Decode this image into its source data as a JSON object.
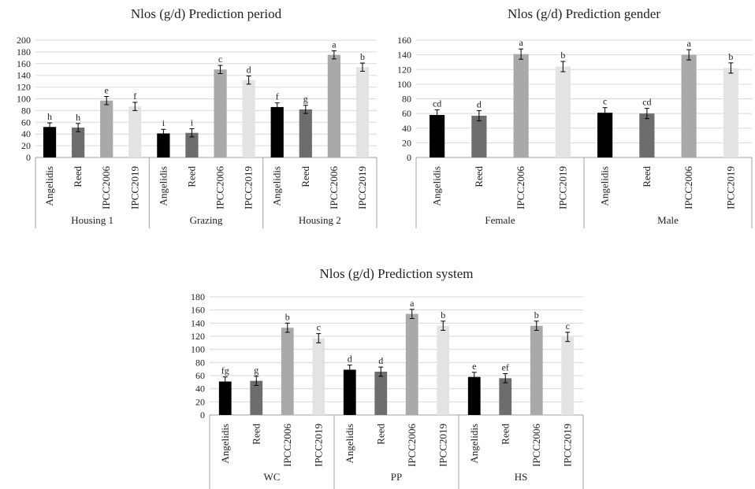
{
  "colors": {
    "Angelidis": "#000000",
    "Reed": "#6d6d6d",
    "IPCC2006": "#a9a9a9",
    "IPCC2019": "#e3e3e3",
    "grid": "#d9d9d9",
    "axis": "#a0a0a0"
  },
  "chart_data": [
    {
      "id": "period",
      "type": "bar",
      "title": "Nlos (g/d) Prediction period",
      "xlabel": "",
      "ylabel": "",
      "ylim": [
        0,
        200
      ],
      "yticks": [
        0,
        20,
        40,
        60,
        80,
        100,
        120,
        140,
        160,
        180,
        200
      ],
      "grid": true,
      "methods": [
        "Angelidis",
        "Reed",
        "IPCC2006",
        "IPCC2019"
      ],
      "groups": [
        {
          "name": "Housing 1",
          "bars": [
            {
              "method": "Angelidis",
              "value": 52,
              "error": 7,
              "letter": "h"
            },
            {
              "method": "Reed",
              "value": 51,
              "error": 7,
              "letter": "h"
            },
            {
              "method": "IPCC2006",
              "value": 97,
              "error": 7,
              "letter": "e"
            },
            {
              "method": "IPCC2019",
              "value": 87,
              "error": 7,
              "letter": "f"
            }
          ]
        },
        {
          "name": "Grazing",
          "bars": [
            {
              "method": "Angelidis",
              "value": 41,
              "error": 7,
              "letter": "i"
            },
            {
              "method": "Reed",
              "value": 42,
              "error": 7,
              "letter": "i"
            },
            {
              "method": "IPCC2006",
              "value": 150,
              "error": 7,
              "letter": "c"
            },
            {
              "method": "IPCC2019",
              "value": 132,
              "error": 7,
              "letter": "d"
            }
          ]
        },
        {
          "name": "Housing 2",
          "bars": [
            {
              "method": "Angelidis",
              "value": 86,
              "error": 7,
              "letter": "f"
            },
            {
              "method": "Reed",
              "value": 82,
              "error": 7,
              "letter": "g"
            },
            {
              "method": "IPCC2006",
              "value": 175,
              "error": 7,
              "letter": "a"
            },
            {
              "method": "IPCC2019",
              "value": 154,
              "error": 7,
              "letter": "b"
            }
          ]
        }
      ]
    },
    {
      "id": "gender",
      "type": "bar",
      "title": "Nlos (g/d) Prediction gender",
      "xlabel": "",
      "ylabel": "",
      "ylim": [
        0,
        160
      ],
      "yticks": [
        0,
        20,
        40,
        60,
        80,
        100,
        120,
        140,
        160
      ],
      "grid": true,
      "methods": [
        "Angelidis",
        "Reed",
        "IPCC2006",
        "IPCC2019"
      ],
      "groups": [
        {
          "name": "Female",
          "bars": [
            {
              "method": "Angelidis",
              "value": 58,
              "error": 7,
              "letter": "cd"
            },
            {
              "method": "Reed",
              "value": 57,
              "error": 7,
              "letter": "d"
            },
            {
              "method": "IPCC2006",
              "value": 141,
              "error": 7,
              "letter": "a"
            },
            {
              "method": "IPCC2019",
              "value": 124,
              "error": 7,
              "letter": "b"
            }
          ]
        },
        {
          "name": "Male",
          "bars": [
            {
              "method": "Angelidis",
              "value": 61,
              "error": 7,
              "letter": "c"
            },
            {
              "method": "Reed",
              "value": 60,
              "error": 7,
              "letter": "cd"
            },
            {
              "method": "IPCC2006",
              "value": 140,
              "error": 7,
              "letter": "a"
            },
            {
              "method": "IPCC2019",
              "value": 122,
              "error": 7,
              "letter": "b"
            }
          ]
        }
      ]
    },
    {
      "id": "system",
      "type": "bar",
      "title": "Nlos (g/d) Prediction system",
      "xlabel": "",
      "ylabel": "",
      "ylim": [
        0,
        180
      ],
      "yticks": [
        0,
        20,
        40,
        60,
        80,
        100,
        120,
        140,
        160,
        180
      ],
      "grid": true,
      "methods": [
        "Angelidis",
        "Reed",
        "IPCC2006",
        "IPCC2019"
      ],
      "groups": [
        {
          "name": "WC",
          "bars": [
            {
              "method": "Angelidis",
              "value": 51,
              "error": 7,
              "letter": "fg"
            },
            {
              "method": "Reed",
              "value": 52,
              "error": 7,
              "letter": "g"
            },
            {
              "method": "IPCC2006",
              "value": 133,
              "error": 7,
              "letter": "b"
            },
            {
              "method": "IPCC2019",
              "value": 117,
              "error": 7,
              "letter": "c"
            }
          ]
        },
        {
          "name": "PP",
          "bars": [
            {
              "method": "Angelidis",
              "value": 69,
              "error": 7,
              "letter": "d"
            },
            {
              "method": "Reed",
              "value": 66,
              "error": 7,
              "letter": "d"
            },
            {
              "method": "IPCC2006",
              "value": 154,
              "error": 7,
              "letter": "a"
            },
            {
              "method": "IPCC2019",
              "value": 136,
              "error": 7,
              "letter": "b"
            }
          ]
        },
        {
          "name": "HS",
          "bars": [
            {
              "method": "Angelidis",
              "value": 58,
              "error": 7,
              "letter": "e"
            },
            {
              "method": "Reed",
              "value": 56,
              "error": 7,
              "letter": "ef"
            },
            {
              "method": "IPCC2006",
              "value": 136,
              "error": 7,
              "letter": "b"
            },
            {
              "method": "IPCC2019",
              "value": 119,
              "error": 7,
              "letter": "c"
            }
          ]
        }
      ]
    }
  ]
}
